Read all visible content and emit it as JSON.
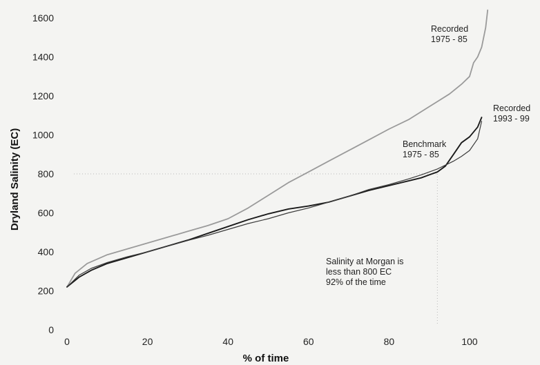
{
  "chart_data": {
    "type": "line",
    "xlabel": "% of time",
    "ylabel": "Dryland Salinity (EC)",
    "xlim": [
      0,
      105
    ],
    "ylim": [
      0,
      1650
    ],
    "x_ticks": [
      0,
      20,
      40,
      60,
      80,
      100
    ],
    "y_ticks": [
      0,
      200,
      400,
      600,
      800,
      1000,
      1200,
      1400,
      1600
    ],
    "grid": false,
    "series": [
      {
        "name": "Recorded 1975 - 85",
        "color": "#9a9a9a",
        "x": [
          0,
          2,
          5,
          10,
          15,
          20,
          25,
          30,
          35,
          40,
          45,
          50,
          55,
          60,
          65,
          70,
          75,
          80,
          85,
          90,
          95,
          98,
          100,
          101,
          102,
          103,
          104,
          104.5
        ],
        "y": [
          220,
          290,
          340,
          385,
          415,
          445,
          475,
          505,
          535,
          570,
          625,
          690,
          755,
          810,
          865,
          920,
          975,
          1030,
          1080,
          1145,
          1210,
          1260,
          1300,
          1370,
          1400,
          1450,
          1550,
          1640
        ]
      },
      {
        "name": "Recorded 1993 - 99",
        "color": "#1a1a1a",
        "x": [
          0,
          3,
          6,
          10,
          15,
          20,
          25,
          30,
          35,
          40,
          45,
          50,
          55,
          60,
          65,
          70,
          75,
          80,
          85,
          88,
          90,
          92,
          94,
          96,
          98,
          100,
          102,
          103
        ],
        "y": [
          220,
          270,
          305,
          340,
          370,
          400,
          430,
          460,
          495,
          530,
          565,
          595,
          620,
          635,
          655,
          685,
          715,
          740,
          765,
          780,
          795,
          810,
          840,
          900,
          960,
          990,
          1040,
          1090
        ]
      },
      {
        "name": "Benchmark 1975 - 85",
        "color": "#3a3a3a",
        "x": [
          0,
          3,
          6,
          10,
          15,
          20,
          25,
          30,
          35,
          40,
          45,
          50,
          55,
          60,
          65,
          70,
          75,
          80,
          85,
          88,
          90,
          92,
          94,
          96,
          98,
          100,
          102,
          103
        ],
        "y": [
          220,
          280,
          315,
          345,
          375,
          400,
          430,
          458,
          485,
          515,
          545,
          570,
          600,
          625,
          655,
          685,
          720,
          745,
          775,
          795,
          810,
          825,
          845,
          865,
          890,
          920,
          980,
          1070
        ]
      }
    ],
    "annotations": [
      {
        "lines": [
          "Recorded",
          "1975 - 85"
        ]
      },
      {
        "lines": [
          "Recorded",
          "1993 - 99"
        ]
      },
      {
        "lines": [
          "Benchmark",
          "1975 - 85"
        ]
      },
      {
        "lines": [
          "Salinity at Morgan is",
          "less than 800 EC",
          "92% of the time"
        ]
      }
    ],
    "reference": {
      "x": 92,
      "y": 800
    }
  }
}
